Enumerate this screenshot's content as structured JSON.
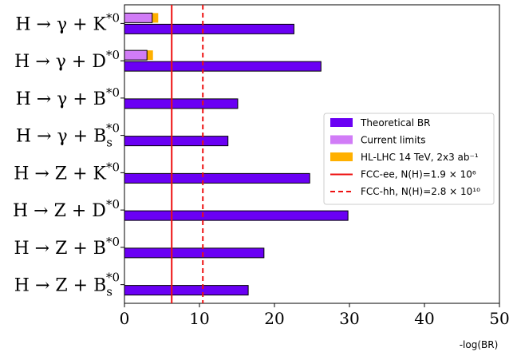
{
  "chart_data": {
    "type": "bar",
    "orientation": "horizontal",
    "xlabel": "-log(BR)",
    "xlim": [
      0,
      50
    ],
    "xticks": [
      0,
      10,
      20,
      30,
      40,
      50
    ],
    "categories": [
      {
        "label": "H → γ + K*0"
      },
      {
        "label": "H → γ + D*0"
      },
      {
        "label": "H → γ + B*0"
      },
      {
        "label": "H → γ + Bs*0"
      },
      {
        "label": "H → Z + K*0"
      },
      {
        "label": "H → Z + D*0"
      },
      {
        "label": "H → Z + B*0"
      },
      {
        "label": "H → Z + Bs*0"
      }
    ],
    "series": [
      {
        "name": "Theoretical BR",
        "color": "#6a00f4",
        "values": [
          22.6,
          26.2,
          15.1,
          13.8,
          24.7,
          29.8,
          18.6,
          16.5
        ]
      },
      {
        "name": "Current limits",
        "color": "#d17cf7",
        "values": [
          3.7,
          3.0,
          null,
          null,
          null,
          null,
          null,
          null
        ]
      },
      {
        "name": "HL-LHC 14 TeV, 2x3 ab⁻¹",
        "color": "#ffb000",
        "values": [
          4.5,
          3.8,
          null,
          null,
          null,
          null,
          null,
          null
        ]
      }
    ],
    "reference_lines": [
      {
        "name": "FCC-ee, N(H)=1.9 × 10⁶",
        "x": 6.3,
        "color": "#ee1111",
        "style": "solid"
      },
      {
        "name": "FCC-hh, N(H)=2.8 × 10¹⁰",
        "x": 10.45,
        "color": "#ee1111",
        "style": "dashed"
      }
    ],
    "legend": {
      "position": "center-right",
      "entries": [
        {
          "label": "Theoretical BR",
          "kind": "patch",
          "color": "#6a00f4"
        },
        {
          "label": "Current limits",
          "kind": "patch",
          "color": "#d17cf7"
        },
        {
          "label": "HL-LHC 14 TeV, 2x3 ab⁻¹",
          "kind": "patch",
          "color": "#ffb000"
        },
        {
          "label": "FCC-ee, N(H)=1.9 × 10⁶",
          "kind": "line-solid",
          "color": "#ee1111"
        },
        {
          "label": "FCC-hh, N(H)=2.8 × 10¹⁰",
          "kind": "line-dashed",
          "color": "#ee1111"
        }
      ]
    }
  }
}
